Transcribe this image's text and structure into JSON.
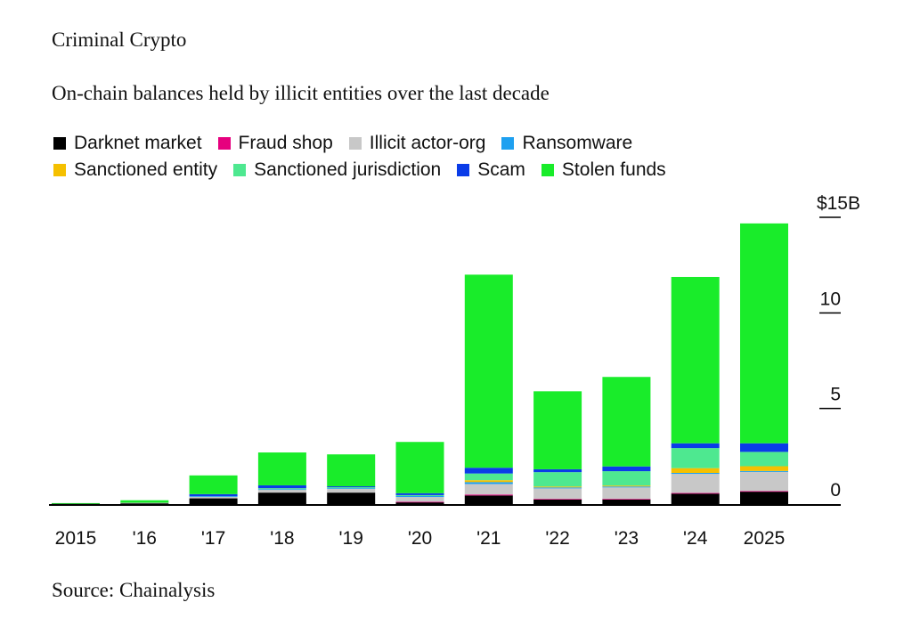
{
  "title": "Criminal Crypto",
  "subtitle": "On-chain balances held by illicit entities over the last decade",
  "source": "Source: Chainalysis",
  "chart_data": {
    "type": "bar",
    "stacked": true,
    "title": "Criminal Crypto",
    "subtitle": "On-chain balances held by illicit entities over the last decade",
    "categories": [
      "2015",
      "'16",
      "'17",
      "'18",
      "'19",
      "'20",
      "'21",
      "'22",
      "'23",
      "'24",
      "2025"
    ],
    "unit": "$B",
    "ylim": [
      0,
      15
    ],
    "yticks": [
      {
        "value": 0,
        "label": "0"
      },
      {
        "value": 5,
        "label": "5"
      },
      {
        "value": 10,
        "label": "10"
      },
      {
        "value": 15,
        "label": "$15B"
      }
    ],
    "axis_position": "right",
    "legend_position": "top-left",
    "series": [
      {
        "name": "Darknet market",
        "color": "#000000",
        "values": [
          0.02,
          0.05,
          0.3,
          0.6,
          0.6,
          0.1,
          0.45,
          0.25,
          0.25,
          0.55,
          0.65
        ]
      },
      {
        "name": "Fraud shop",
        "color": "#e6007e",
        "values": [
          0,
          0,
          0,
          0,
          0,
          0.02,
          0.05,
          0.02,
          0.02,
          0.03,
          0.03
        ]
      },
      {
        "name": "Illicit actor-org",
        "color": "#c8c8c8",
        "values": [
          0,
          0.02,
          0.1,
          0.15,
          0.2,
          0.25,
          0.55,
          0.55,
          0.6,
          1.0,
          1.0
        ]
      },
      {
        "name": "Ransomware",
        "color": "#1ea0f0",
        "values": [
          0,
          0,
          0.02,
          0.03,
          0.03,
          0.05,
          0.1,
          0.05,
          0.05,
          0.05,
          0.05
        ]
      },
      {
        "name": "Sanctioned entity",
        "color": "#f5c000",
        "values": [
          0,
          0,
          0,
          0,
          0,
          0,
          0.1,
          0.05,
          0.05,
          0.25,
          0.25
        ]
      },
      {
        "name": "Sanctioned jurisdiction",
        "color": "#4ee890",
        "values": [
          0,
          0,
          0,
          0.05,
          0.05,
          0.05,
          0.35,
          0.75,
          0.75,
          1.05,
          0.75
        ]
      },
      {
        "name": "Scam",
        "color": "#0a3ce8",
        "values": [
          0,
          0,
          0.1,
          0.15,
          0.05,
          0.1,
          0.3,
          0.15,
          0.25,
          0.25,
          0.45
        ]
      },
      {
        "name": "Stolen funds",
        "color": "#19ec2a",
        "values": [
          0.03,
          0.13,
          0.98,
          1.72,
          1.67,
          2.68,
          10.1,
          4.08,
          4.68,
          8.7,
          11.5
        ]
      }
    ]
  }
}
